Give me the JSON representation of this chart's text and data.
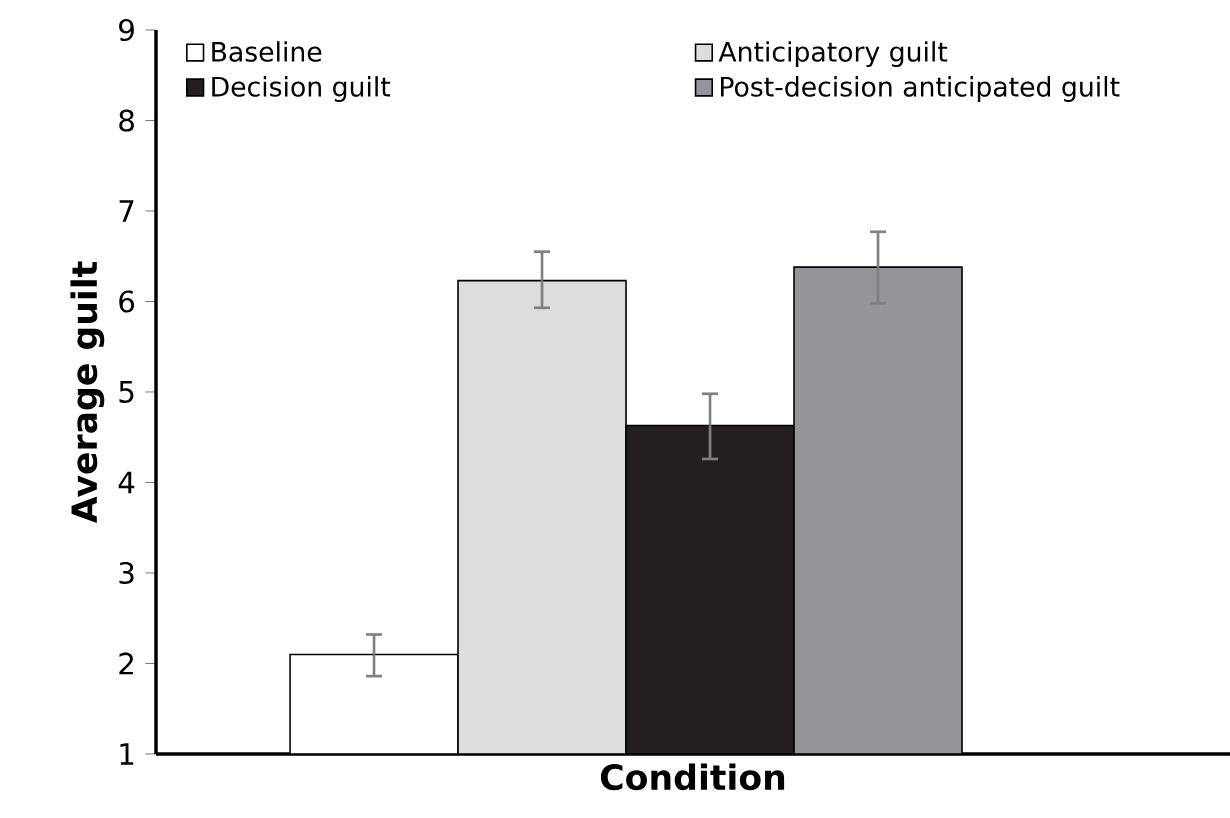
{
  "chart_data": {
    "type": "bar",
    "xlabel": "Condition",
    "ylabel": "Average guilt",
    "categories": [
      null
    ],
    "series": [
      {
        "name": "Baseline",
        "color": "#ffffff",
        "values": [
          2.1
        ],
        "errors": [
          [
            1.86,
            2.32
          ]
        ]
      },
      {
        "name": "Anticipatory guilt",
        "color": "#dcdddf",
        "values": [
          6.23
        ],
        "errors": [
          [
            5.93,
            6.55
          ]
        ]
      },
      {
        "name": "Decision guilt",
        "color": "#231f20",
        "values": [
          4.63
        ],
        "errors": [
          [
            4.26,
            4.98
          ]
        ]
      },
      {
        "name": "Post-decision anticipated guilt",
        "color": "#939598",
        "values": [
          6.38
        ],
        "errors": [
          [
            5.98,
            6.77
          ]
        ]
      }
    ],
    "ylim": [
      1,
      9
    ],
    "yticks": [
      1,
      2,
      3,
      4,
      5,
      6,
      7,
      8,
      9
    ],
    "legend": "top",
    "grid": false
  }
}
